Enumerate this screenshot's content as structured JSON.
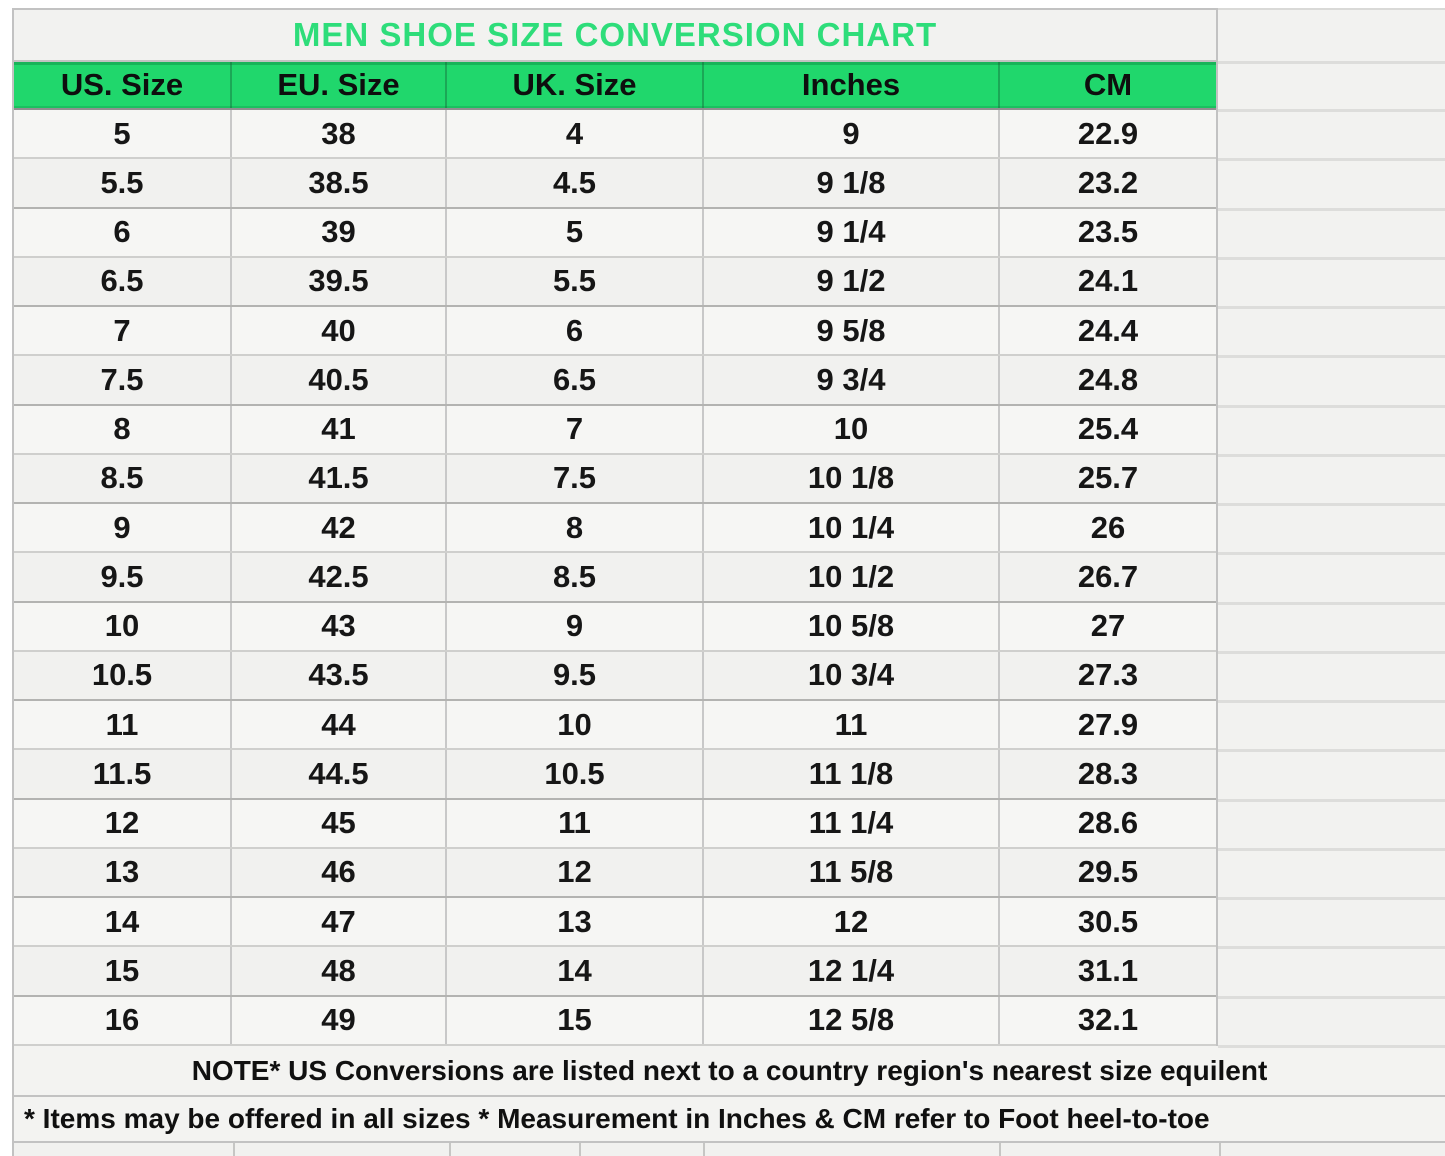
{
  "chart_data": {
    "type": "table",
    "title": "MEN SHOE SIZE CONVERSION CHART",
    "columns": [
      "US. Size",
      "EU. Size",
      "UK. Size",
      "Inches",
      "CM"
    ],
    "rows": [
      [
        "5",
        "38",
        "4",
        "9",
        "22.9"
      ],
      [
        "5.5",
        "38.5",
        "4.5",
        "9 1/8",
        "23.2"
      ],
      [
        "6",
        "39",
        "5",
        "9 1/4",
        "23.5"
      ],
      [
        "6.5",
        "39.5",
        "5.5",
        "9 1/2",
        "24.1"
      ],
      [
        "7",
        "40",
        "6",
        "9 5/8",
        "24.4"
      ],
      [
        "7.5",
        "40.5",
        "6.5",
        "9 3/4",
        "24.8"
      ],
      [
        "8",
        "41",
        "7",
        "10",
        "25.4"
      ],
      [
        "8.5",
        "41.5",
        "7.5",
        "10 1/8",
        "25.7"
      ],
      [
        "9",
        "42",
        "8",
        "10 1/4",
        "26"
      ],
      [
        "9.5",
        "42.5",
        "8.5",
        "10 1/2",
        "26.7"
      ],
      [
        "10",
        "43",
        "9",
        "10 5/8",
        "27"
      ],
      [
        "10.5",
        "43.5",
        "9.5",
        "10 3/4",
        "27.3"
      ],
      [
        "11",
        "44",
        "10",
        "11",
        "27.9"
      ],
      [
        "11.5",
        "44.5",
        "10.5",
        "11 1/8",
        "28.3"
      ],
      [
        "12",
        "45",
        "11",
        "11 1/4",
        "28.6"
      ],
      [
        "13",
        "46",
        "12",
        "11 5/8",
        "29.5"
      ],
      [
        "14",
        "47",
        "13",
        "12",
        "30.5"
      ],
      [
        "15",
        "48",
        "14",
        "12 1/4",
        "31.1"
      ],
      [
        "16",
        "49",
        "15",
        "12 5/8",
        "32.1"
      ]
    ],
    "notes": [
      "NOTE* US Conversions are listed next to a country region's nearest size equilent",
      "* Items may be offered in all sizes * Measurement in Inches & CM refer to Foot heel-to-toe"
    ],
    "layout_hints": {
      "grid": true,
      "header_position": "top"
    }
  },
  "colors": {
    "header_green": "#20d76c",
    "title_green": "#2edd7a",
    "grid_line": "#c2c2c2",
    "cell_text": "#161616"
  }
}
